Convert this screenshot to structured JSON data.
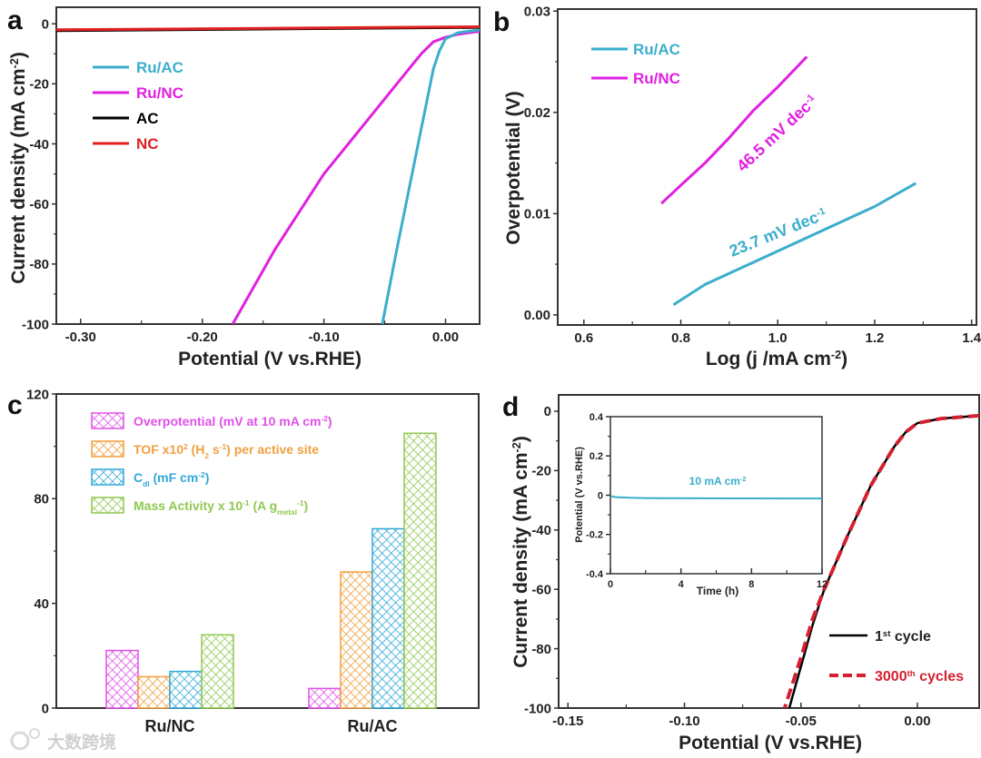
{
  "watermark": "大数跨境",
  "chart_data": [
    {
      "panel": "a",
      "type": "line",
      "xlabel": "Potential (V vs.RHE)",
      "ylabel": "Current density (mA cm^{-2})",
      "xlim": [
        -0.32,
        0.028
      ],
      "ylim": [
        -100,
        5.5
      ],
      "xticks": [
        -0.3,
        -0.2,
        -0.1,
        0.0
      ],
      "xtick_labels": [
        "-0.30",
        "-0.20",
        "-0.10",
        "0.00"
      ],
      "yticks": [
        0,
        -20,
        -40,
        -60,
        -80,
        -100
      ],
      "ytick_labels": [
        "0",
        "-20",
        "-40",
        "-60",
        "-80",
        "-100"
      ],
      "legend_position": "upper-left",
      "series": [
        {
          "name": "Ru/AC",
          "color": "#3aaecc",
          "x": [
            0.028,
            0.01,
            0.0,
            -0.005,
            -0.01,
            -0.015,
            -0.02,
            -0.03,
            -0.04,
            -0.052
          ],
          "y": [
            -2,
            -3,
            -5,
            -9,
            -15,
            -25,
            -35,
            -55,
            -75,
            -100
          ]
        },
        {
          "name": "Ru/NC",
          "color": "#e020e0",
          "x": [
            0.028,
            0.01,
            0.0,
            -0.01,
            -0.02,
            -0.04,
            -0.06,
            -0.1,
            -0.14,
            -0.175
          ],
          "y": [
            -2.5,
            -3.5,
            -4.5,
            -6,
            -10,
            -20,
            -30,
            -50,
            -75,
            -100
          ]
        },
        {
          "name": "AC",
          "color": "#000000",
          "x": [
            -0.32,
            0.028
          ],
          "y": [
            -2.3,
            -1.2
          ]
        },
        {
          "name": "NC",
          "color": "#e02020",
          "x": [
            -0.32,
            0.028
          ],
          "y": [
            -2.0,
            -1.0
          ]
        }
      ]
    },
    {
      "panel": "b",
      "type": "line",
      "xlabel": "Log (j /mA cm^{-2})",
      "ylabel": "Overpotential (V)",
      "xlim": [
        0.546,
        1.41
      ],
      "ylim": [
        -0.001,
        0.0302
      ],
      "xticks": [
        0.6,
        0.8,
        1.0,
        1.2,
        1.4
      ],
      "xtick_labels": [
        "0.6",
        "0.8",
        "1.0",
        "1.2",
        "1.4"
      ],
      "yticks": [
        0.0,
        0.01,
        0.02,
        0.03
      ],
      "ytick_labels": [
        "0.00",
        "0.01",
        "0.02",
        "0.03"
      ],
      "legend_position": "upper-left",
      "series": [
        {
          "name": "Ru/AC",
          "color": "#3aaecc",
          "x": [
            0.785,
            0.85,
            1.0,
            1.1,
            1.2,
            1.285
          ],
          "y": [
            0.001,
            0.003,
            0.0063,
            0.0085,
            0.0107,
            0.013
          ],
          "annotation": "23.7 mV dec^{-1}"
        },
        {
          "name": "Ru/NC",
          "color": "#e020e0",
          "x": [
            0.76,
            0.8,
            0.85,
            0.9,
            0.95,
            1.0,
            1.06
          ],
          "y": [
            0.011,
            0.0128,
            0.015,
            0.0175,
            0.0202,
            0.0225,
            0.0255
          ],
          "annotation": "46.5 mV dec^{-1}"
        }
      ]
    },
    {
      "panel": "c",
      "type": "bar",
      "categories": [
        "Ru/NC",
        "Ru/AC"
      ],
      "ylim": [
        0,
        120
      ],
      "yticks": [
        0,
        40,
        80,
        120
      ],
      "ytick_labels": [
        "0",
        "40",
        "80",
        "120"
      ],
      "legend_position": "upper-left",
      "series": [
        {
          "name": "Overpotential (mV at 10 mA cm^{-2})",
          "color": "#e050e8",
          "values": [
            22,
            7.5
          ]
        },
        {
          "name": "TOF x10^{2} (H_{2} s^{-1}) per active site",
          "color": "#f0a040",
          "values": [
            12,
            52
          ]
        },
        {
          "name": "C_{dl} (mF cm^{-2})",
          "color": "#30a8d8",
          "values": [
            14,
            68.5
          ]
        },
        {
          "name": "Mass Activity x 10^{-1} (A g_{metal}^{-1})",
          "color": "#90c850",
          "values": [
            28,
            105
          ]
        }
      ]
    },
    {
      "panel": "d",
      "type": "line",
      "xlabel": "Potential (V vs.RHE)",
      "ylabel": "Current density (mA cm^{-2})",
      "xlim": [
        -0.154,
        0.0265
      ],
      "ylim": [
        -100,
        5.5
      ],
      "xticks": [
        -0.15,
        -0.1,
        -0.05,
        0.0
      ],
      "xtick_labels": [
        "-0.15",
        "-0.10",
        "-0.05",
        "0.00"
      ],
      "yticks": [
        0,
        -20,
        -40,
        -60,
        -80,
        -100
      ],
      "ytick_labels": [
        "0",
        "-20",
        "-40",
        "-60",
        "-80",
        "-100"
      ],
      "legend_position": "lower-right",
      "series": [
        {
          "name": "1^{st} cycle",
          "color": "#000000",
          "style": "solid",
          "x": [
            0.0265,
            0.01,
            0.0,
            -0.005,
            -0.01,
            -0.02,
            -0.03,
            -0.04,
            -0.045,
            -0.055
          ],
          "y": [
            -1.5,
            -2.5,
            -4,
            -7,
            -12,
            -25,
            -42,
            -60,
            -72,
            -100
          ]
        },
        {
          "name": "3000^{th} cycles",
          "color": "#d42030",
          "style": "dashed",
          "x": [
            0.0265,
            0.01,
            0.0,
            -0.005,
            -0.01,
            -0.02,
            -0.03,
            -0.04,
            -0.045,
            -0.05,
            -0.057
          ],
          "y": [
            -1.5,
            -2.5,
            -4,
            -7,
            -12,
            -25,
            -42,
            -60,
            -70,
            -83,
            -100
          ]
        }
      ],
      "inset": {
        "type": "line",
        "xlabel": "Time (h)",
        "ylabel": "Potential (V vs.RHE)",
        "xlim": [
          0,
          12
        ],
        "ylim": [
          -0.4,
          0.4
        ],
        "xticks": [
          0,
          4,
          8,
          12
        ],
        "xtick_labels": [
          "0",
          "4",
          "8",
          "12"
        ],
        "yticks": [
          -0.4,
          -0.2,
          0,
          0.2,
          0.4
        ],
        "ytick_labels": [
          "-0.4",
          "-0.2",
          "0",
          "0.2",
          "0.4"
        ],
        "annotation": "10 mA cm^{-2}",
        "series": [
          {
            "name": "10 mA cm-2",
            "color": "#3aaecc",
            "x": [
              0,
              0.3,
              1,
              2,
              6,
              12
            ],
            "y": [
              -0.005,
              -0.01,
              -0.013,
              -0.015,
              -0.016,
              -0.017
            ]
          }
        ]
      }
    }
  ],
  "panel_letters": [
    "a",
    "b",
    "c",
    "d"
  ]
}
